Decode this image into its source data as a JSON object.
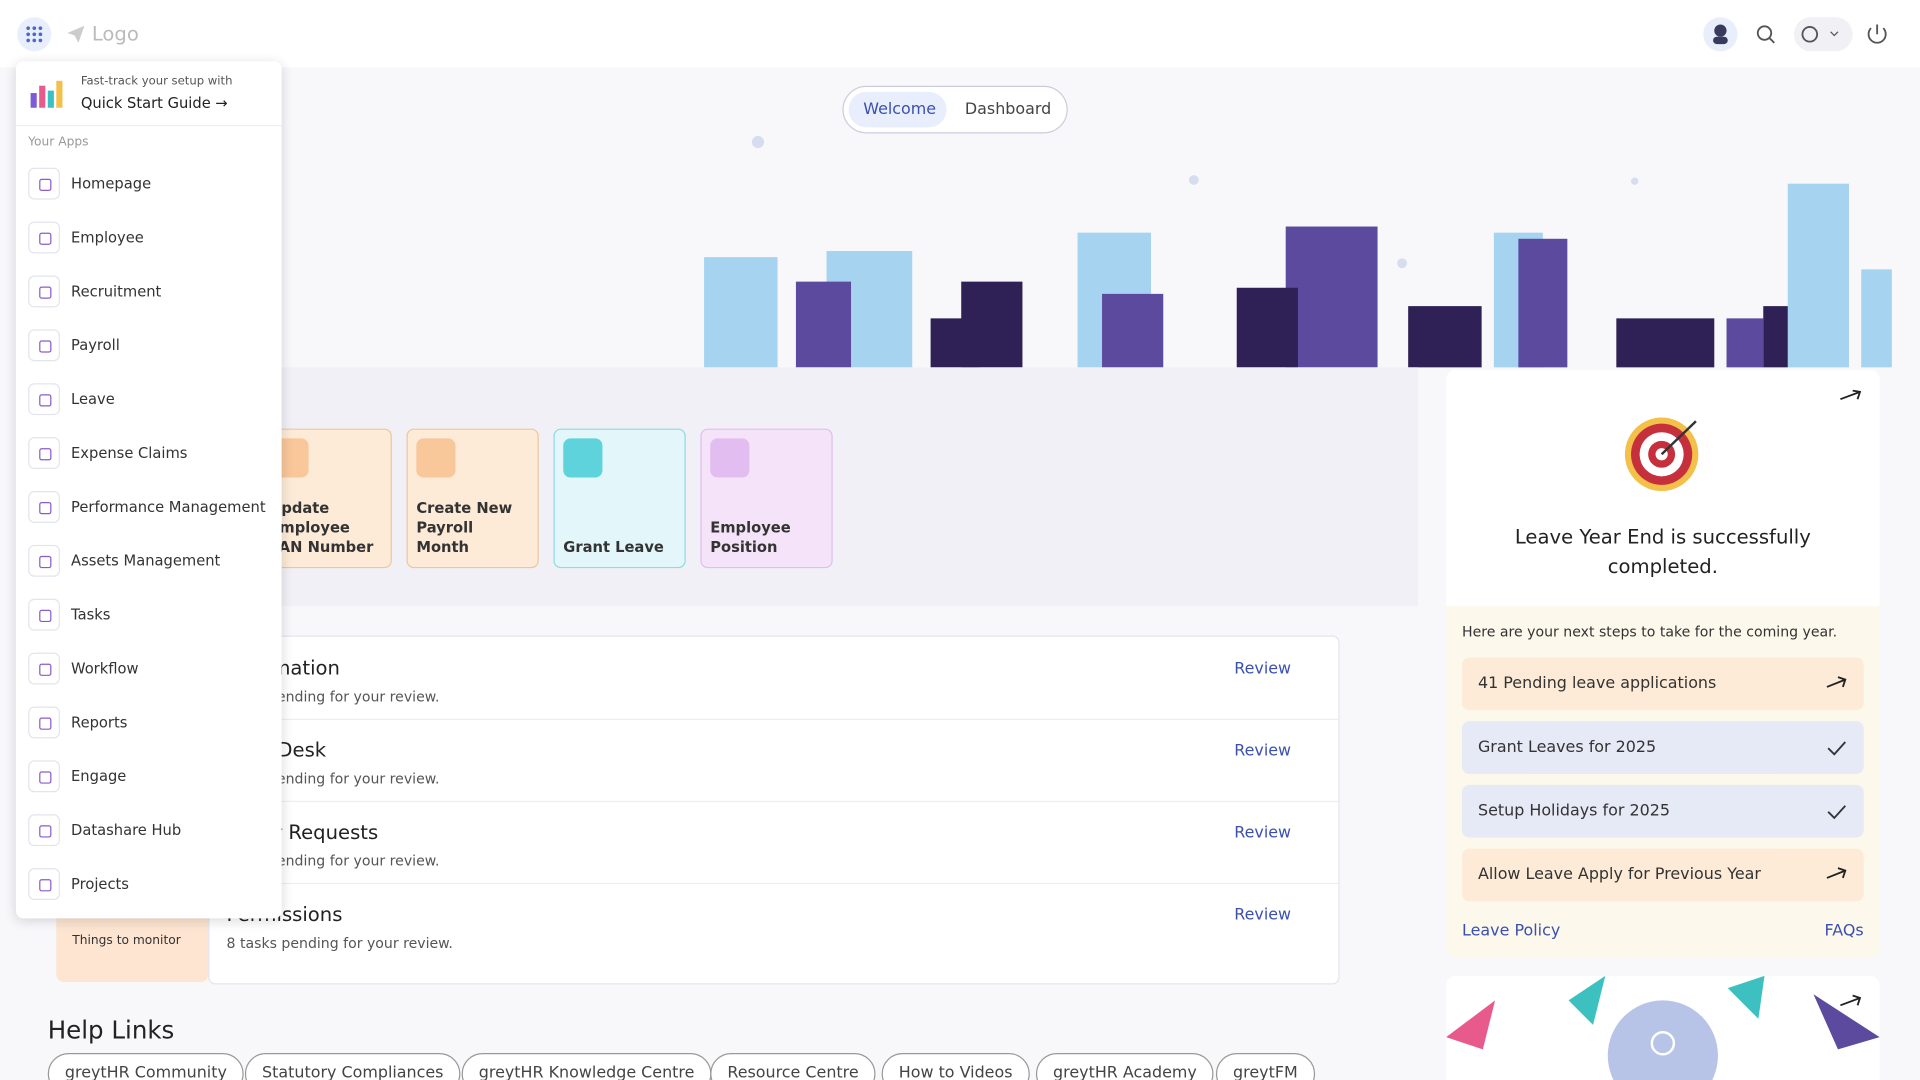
{
  "header": {
    "logo": "Logo"
  },
  "menu": {
    "promo_small": "Fast-track your setup with",
    "promo_link": "Quick Start Guide →",
    "section": "Your Apps",
    "items": [
      "Homepage",
      "Employee",
      "Recruitment",
      "Payroll",
      "Leave",
      "Expense Claims",
      "Performance Management",
      "Assets Management",
      "Tasks",
      "Workflow",
      "Reports",
      "Engage",
      "Datashare Hub",
      "Projects"
    ]
  },
  "tabs": [
    "Welcome",
    "Dashboard"
  ],
  "tiles": [
    "Update Employee PAN Number",
    "Create New Payroll Month",
    "Grant Leave",
    "Employee Position"
  ],
  "monitor": {
    "label": "Things to monitor"
  },
  "tasks": [
    {
      "title": "Information",
      "sub": "tasks pending for your review.",
      "action": "Review"
    },
    {
      "title": "Help Desk",
      "sub": "tasks pending for your review.",
      "action": "Review"
    },
    {
      "title": "Other Requests",
      "sub": "tasks pending for your review.",
      "action": "Review"
    },
    {
      "title": "Permissions",
      "sub": "8 tasks pending for your review.",
      "action": "Review"
    }
  ],
  "leave_panel": {
    "title": "Leave Year End is successfully completed.",
    "intro": "Here are your next steps to take for the coming year.",
    "steps": [
      "41 Pending leave applications",
      "Grant Leaves for 2025",
      "Setup Holidays for 2025",
      "Allow Leave Apply for Previous Year"
    ],
    "links": [
      "Leave Policy",
      "FAQs"
    ]
  },
  "help": {
    "title": "Help Links",
    "links": [
      "greytHR Community",
      "Statutory Compliances",
      "greytHR Knowledge Centre",
      "Resource Centre",
      "How to Videos",
      "greytHR Academy",
      "greytFM"
    ]
  }
}
